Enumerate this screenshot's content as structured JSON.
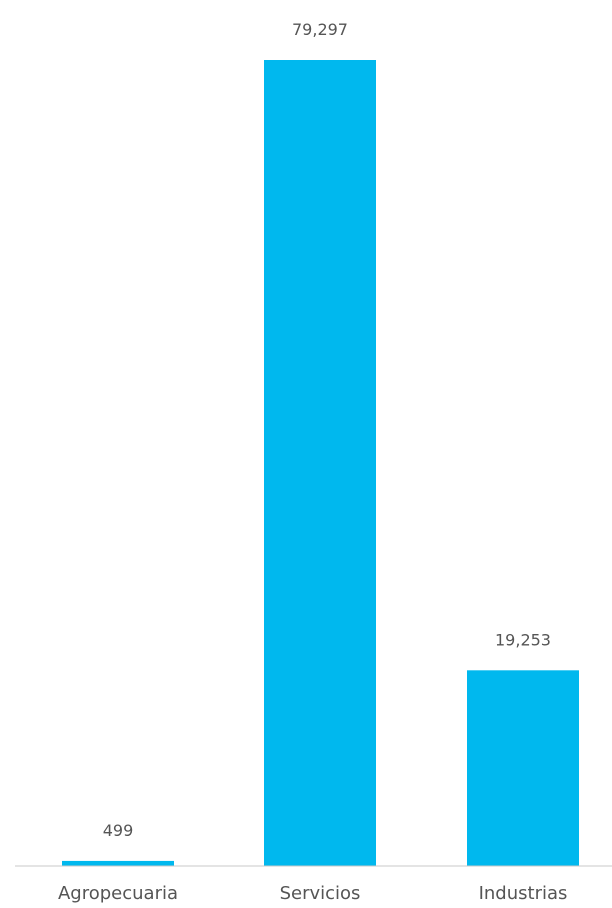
{
  "chart_data": {
    "type": "bar",
    "categories": [
      "Agropecuaria",
      "Servicios",
      "Industrias"
    ],
    "values": [
      499,
      79297,
      19253
    ],
    "value_labels": [
      "499",
      "79,297",
      "19,253"
    ],
    "bar_color": "#00B8EE",
    "baseline_color": "#c8c8c8",
    "grid": false,
    "legend": "none"
  }
}
